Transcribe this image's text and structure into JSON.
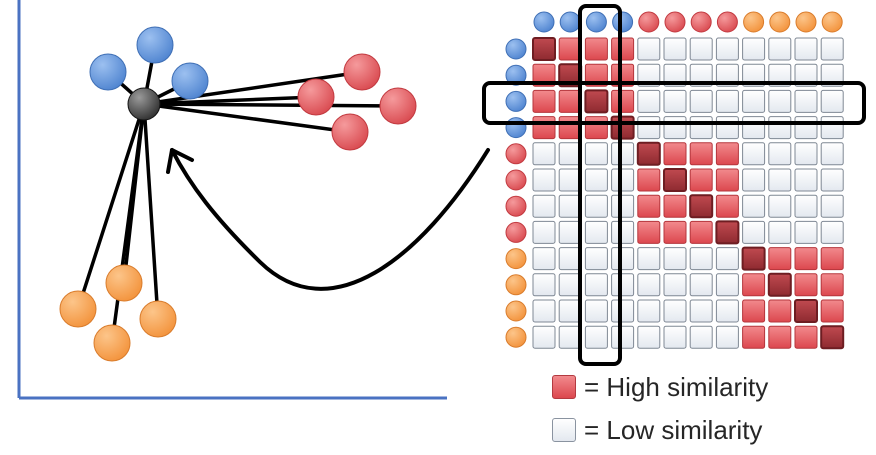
{
  "colors": {
    "blue": "#5b8fd8",
    "red": "#e2555b",
    "orange": "#f6a04a",
    "center_node": "#3f3f3f",
    "high_cell": "#e2555b",
    "high_cell_diag": "#a8333a",
    "low_cell": "#eef2f7",
    "axis": "#4a72c2",
    "line": "#000000"
  },
  "scatter": {
    "center_node": {
      "color": "gray"
    },
    "points": [
      {
        "group": "blue"
      },
      {
        "group": "blue"
      },
      {
        "group": "blue"
      },
      {
        "group": "red"
      },
      {
        "group": "red"
      },
      {
        "group": "red"
      },
      {
        "group": "red"
      },
      {
        "group": "orange"
      },
      {
        "group": "orange"
      },
      {
        "group": "orange"
      },
      {
        "group": "orange"
      }
    ]
  },
  "matrix": {
    "size": 12,
    "groups": [
      "blue",
      "blue",
      "blue",
      "blue",
      "red",
      "red",
      "red",
      "red",
      "orange",
      "orange",
      "orange",
      "orange"
    ],
    "highlighted_row": 2,
    "highlighted_col": 2,
    "high_blocks": [
      [
        0,
        4
      ],
      [
        4,
        8
      ],
      [
        8,
        12
      ]
    ]
  },
  "legend": {
    "high": "= High similarity",
    "low": "= Low similarity"
  }
}
